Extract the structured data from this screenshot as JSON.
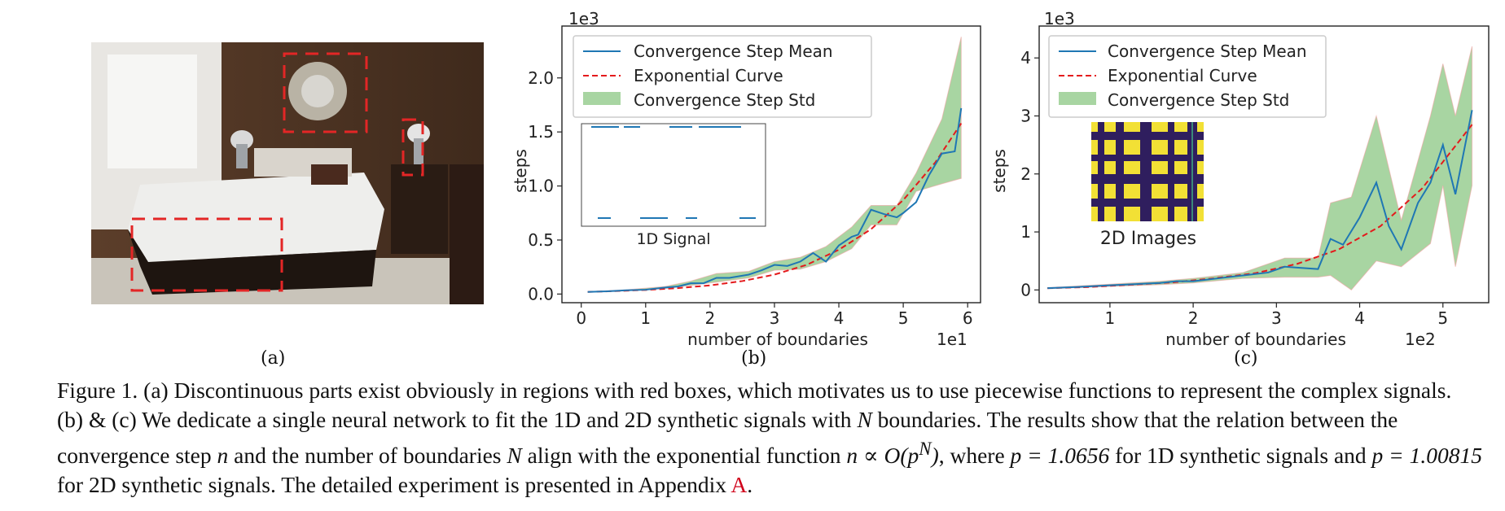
{
  "figure": {
    "subfig_labels": [
      "(a)",
      "(b)",
      "(c)"
    ],
    "caption": {
      "lead": "Figure 1. (a) Discontinuous parts exist obviously in regions with red boxes, which motivates us to use piecewise functions to represent the complex signals. (b) & (c) We dedicate a single neural network to fit the 1D and 2D synthetic signals with ",
      "N1": "N",
      "mid1": " boundaries. The results show that the relation between the convergence step ",
      "n1": "n",
      "mid2": " and the number of boundaries ",
      "N2": "N",
      "mid3": " align with the exponential function ",
      "formula": "n ∝ O(p",
      "formula_sup": "N",
      "formula_end": ")",
      "mid4": ", where ",
      "p1": "p = 1.0656",
      "mid5": " for 1D synthetic signals and ",
      "p2": "p = 1.00815",
      "mid6": " for 2D synthetic signals. The detailed experiment is presented in Appendix ",
      "ref": "A",
      "end": "."
    }
  },
  "colors": {
    "mean": "#1f77b4",
    "curve": "#e41a1c",
    "std_fill": "#a8d5a2",
    "box": "#e32626"
  },
  "chart_data": [
    {
      "type": "line",
      "id": "b",
      "offset_label": "1e3",
      "x_offset_label": "1e1",
      "xlabel": "number of boundaries",
      "ylabel": "steps",
      "xlim": [
        -0.3,
        6.2
      ],
      "ylim": [
        -0.08,
        2.48
      ],
      "xticks": [
        0,
        1,
        2,
        3,
        4,
        5,
        6
      ],
      "yticks": [
        0.0,
        0.5,
        1.0,
        1.5,
        2.0
      ],
      "ytick_labels": [
        "0.0",
        "0.5",
        "1.0",
        "1.5",
        "2.0"
      ],
      "legend": [
        "Convergence Step Mean",
        "Exponential Curve",
        "Convergence Step Std"
      ],
      "legend_position": "top-left",
      "inset_label": "1D Signal",
      "series": [
        {
          "name": "Convergence Step Mean",
          "x": [
            0.1,
            0.4,
            0.7,
            1.0,
            1.3,
            1.5,
            1.7,
            1.9,
            2.1,
            2.3,
            2.6,
            2.8,
            3.0,
            3.2,
            3.4,
            3.6,
            3.8,
            4.0,
            4.2,
            4.3,
            4.5,
            4.7,
            4.9,
            5.0,
            5.2,
            5.4,
            5.6,
            5.8,
            5.9
          ],
          "values": [
            0.02,
            0.025,
            0.035,
            0.04,
            0.06,
            0.07,
            0.1,
            0.1,
            0.15,
            0.15,
            0.18,
            0.22,
            0.27,
            0.26,
            0.3,
            0.38,
            0.3,
            0.45,
            0.53,
            0.55,
            0.78,
            0.74,
            0.71,
            0.75,
            0.85,
            1.1,
            1.3,
            1.32,
            1.72
          ]
        },
        {
          "name": "Exponential Curve",
          "x": [
            0.1,
            0.5,
            1.0,
            1.5,
            2.0,
            2.5,
            3.0,
            3.5,
            4.0,
            4.5,
            5.0,
            5.5,
            5.9
          ],
          "values": [
            0.02,
            0.027,
            0.038,
            0.055,
            0.08,
            0.12,
            0.18,
            0.27,
            0.41,
            0.6,
            0.87,
            1.22,
            1.58
          ]
        }
      ],
      "std_band": {
        "x": [
          0.1,
          0.7,
          1.3,
          1.7,
          2.1,
          2.6,
          3.0,
          3.4,
          3.8,
          4.2,
          4.5,
          4.9,
          5.2,
          5.6,
          5.9
        ],
        "upper": [
          0.02,
          0.04,
          0.07,
          0.12,
          0.19,
          0.21,
          0.3,
          0.34,
          0.44,
          0.62,
          0.82,
          0.82,
          1.12,
          1.62,
          2.38
        ],
        "lower": [
          0.02,
          0.03,
          0.05,
          0.08,
          0.11,
          0.15,
          0.22,
          0.23,
          0.3,
          0.42,
          0.64,
          0.64,
          0.95,
          1.02,
          1.07
        ]
      }
    },
    {
      "type": "line",
      "id": "c",
      "offset_label": "1e3",
      "x_offset_label": "1e2",
      "xlabel": "number of boundaries",
      "ylabel": "steps",
      "xlim": [
        0.15,
        5.55
      ],
      "ylim": [
        -0.22,
        4.55
      ],
      "xticks": [
        1,
        2,
        3,
        4,
        5
      ],
      "yticks": [
        0,
        1,
        2,
        3,
        4
      ],
      "ytick_labels": [
        "0",
        "1",
        "2",
        "3",
        "4"
      ],
      "legend": [
        "Convergence Step Mean",
        "Exponential Curve",
        "Convergence Step Std"
      ],
      "legend_position": "top-left",
      "inset_label": "2D Images",
      "series": [
        {
          "name": "Convergence Step Mean",
          "x": [
            0.25,
            0.6,
            1.0,
            1.3,
            1.6,
            1.8,
            2.0,
            2.3,
            2.6,
            2.9,
            3.1,
            3.3,
            3.5,
            3.65,
            3.8,
            4.0,
            4.2,
            4.35,
            4.5,
            4.7,
            4.85,
            5.0,
            5.15,
            5.35
          ],
          "values": [
            0.03,
            0.05,
            0.08,
            0.1,
            0.12,
            0.15,
            0.15,
            0.2,
            0.25,
            0.3,
            0.4,
            0.38,
            0.36,
            0.88,
            0.78,
            1.25,
            1.85,
            1.1,
            0.7,
            1.5,
            1.85,
            2.5,
            1.65,
            3.1
          ]
        },
        {
          "name": "Exponential Curve",
          "x": [
            0.25,
            0.75,
            1.25,
            1.75,
            2.25,
            2.75,
            3.25,
            3.75,
            4.25,
            4.75,
            5.35
          ],
          "values": [
            0.03,
            0.05,
            0.09,
            0.13,
            0.2,
            0.29,
            0.45,
            0.7,
            1.1,
            1.75,
            2.85
          ]
        }
      ],
      "std_band": {
        "x": [
          0.25,
          1.0,
          1.6,
          2.0,
          2.6,
          3.1,
          3.5,
          3.65,
          3.9,
          4.2,
          4.5,
          4.85,
          5.0,
          5.15,
          5.35
        ],
        "upper": [
          0.04,
          0.1,
          0.15,
          0.2,
          0.3,
          0.55,
          0.55,
          1.5,
          1.6,
          3.0,
          1.2,
          3.0,
          3.9,
          3.0,
          4.2
        ],
        "lower": [
          0.02,
          0.06,
          0.09,
          0.12,
          0.2,
          0.22,
          0.22,
          0.25,
          0.0,
          0.5,
          0.4,
          0.8,
          1.8,
          0.4,
          1.8
        ]
      }
    }
  ]
}
